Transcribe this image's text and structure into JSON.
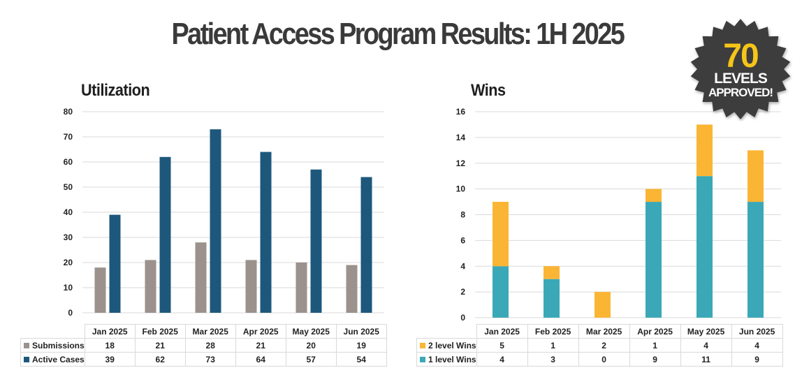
{
  "header": {
    "title": "Patient Access Program Results: 1H 2025"
  },
  "badge": {
    "number": "70",
    "line1": "LEVELS",
    "line2": "APPROVED!",
    "bg_color": "#3d3d3d",
    "number_color": "#f5c518",
    "text_color": "#ffffff"
  },
  "colors": {
    "submissions": "#9b928d",
    "active_cases": "#1d587c",
    "two_level": "#fbb534",
    "one_level": "#3ba8b7"
  },
  "chart_data": [
    {
      "type": "bar",
      "title": "Utilization",
      "categories": [
        "Jan 2025",
        "Feb 2025",
        "Mar 2025",
        "Apr 2025",
        "May 2025",
        "Jun 2025"
      ],
      "series": [
        {
          "name": "Submissions",
          "values": [
            18,
            21,
            28,
            21,
            20,
            19
          ],
          "color": "#9b928d"
        },
        {
          "name": "Active Cases",
          "values": [
            39,
            62,
            73,
            64,
            57,
            54
          ],
          "color": "#1d587c"
        }
      ],
      "yticks": [
        "0",
        "10",
        "20",
        "30",
        "40",
        "50",
        "60",
        "70",
        "80"
      ],
      "ylim": [
        0,
        80
      ],
      "xlabel": "",
      "ylabel": "",
      "grid": true,
      "legend": "data-table-below"
    },
    {
      "type": "bar",
      "stacked": true,
      "title": "Wins",
      "categories": [
        "Jan 2025",
        "Feb 2025",
        "Mar 2025",
        "Apr 2025",
        "May 2025",
        "Jun 2025"
      ],
      "series": [
        {
          "name": "2 level Wins",
          "values": [
            5,
            1,
            2,
            1,
            4,
            4
          ],
          "color": "#fbb534"
        },
        {
          "name": "1 level Wins",
          "values": [
            4,
            3,
            0,
            9,
            11,
            9
          ],
          "color": "#3ba8b7"
        }
      ],
      "yticks": [
        "0",
        "2",
        "4",
        "6",
        "8",
        "10",
        "12",
        "14",
        "16"
      ],
      "ylim": [
        0,
        16
      ],
      "xlabel": "",
      "ylabel": "",
      "grid": true,
      "legend": "data-table-below"
    }
  ]
}
